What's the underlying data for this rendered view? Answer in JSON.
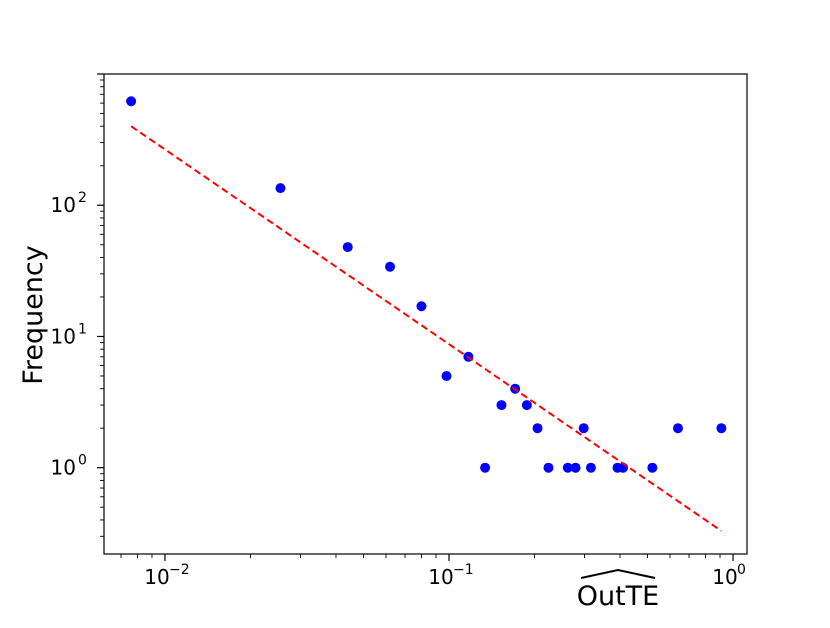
{
  "chart_data": {
    "type": "scatter",
    "xscale": "log",
    "yscale": "log",
    "xlim": [
      0.0061,
      1.12
    ],
    "ylim": [
      0.22,
      1000
    ],
    "xlabel": "OutTE",
    "ylabel": "Frequency",
    "x_ticks": [
      {
        "value": 0.01,
        "base": "10",
        "exp": "−2"
      },
      {
        "value": 0.1,
        "base": "10",
        "exp": "−1"
      },
      {
        "value": 1,
        "base": "10",
        "exp": "0"
      }
    ],
    "y_ticks": [
      {
        "value": 1,
        "base": "10",
        "exp": "0"
      },
      {
        "value": 10,
        "base": "10",
        "exp": "1"
      },
      {
        "value": 100,
        "base": "10",
        "exp": "2"
      }
    ],
    "series": [
      {
        "kind": "points",
        "color": "#0000ff",
        "points": [
          [
            0.0076,
            620
          ],
          [
            0.0255,
            135
          ],
          [
            0.044,
            48
          ],
          [
            0.062,
            34
          ],
          [
            0.08,
            17
          ],
          [
            0.098,
            5
          ],
          [
            0.117,
            7
          ],
          [
            0.134,
            1
          ],
          [
            0.153,
            3
          ],
          [
            0.171,
            4
          ],
          [
            0.188,
            3
          ],
          [
            0.205,
            2
          ],
          [
            0.224,
            1
          ],
          [
            0.262,
            1
          ],
          [
            0.279,
            1
          ],
          [
            0.298,
            2
          ],
          [
            0.316,
            1
          ],
          [
            0.392,
            1
          ],
          [
            0.41,
            1
          ],
          [
            0.52,
            1
          ],
          [
            0.64,
            2
          ],
          [
            0.91,
            2
          ]
        ]
      },
      {
        "kind": "fit",
        "style": "dashed",
        "color": "#ff0000",
        "points": [
          [
            0.0076,
            400
          ],
          [
            0.91,
            0.33
          ]
        ]
      }
    ]
  }
}
